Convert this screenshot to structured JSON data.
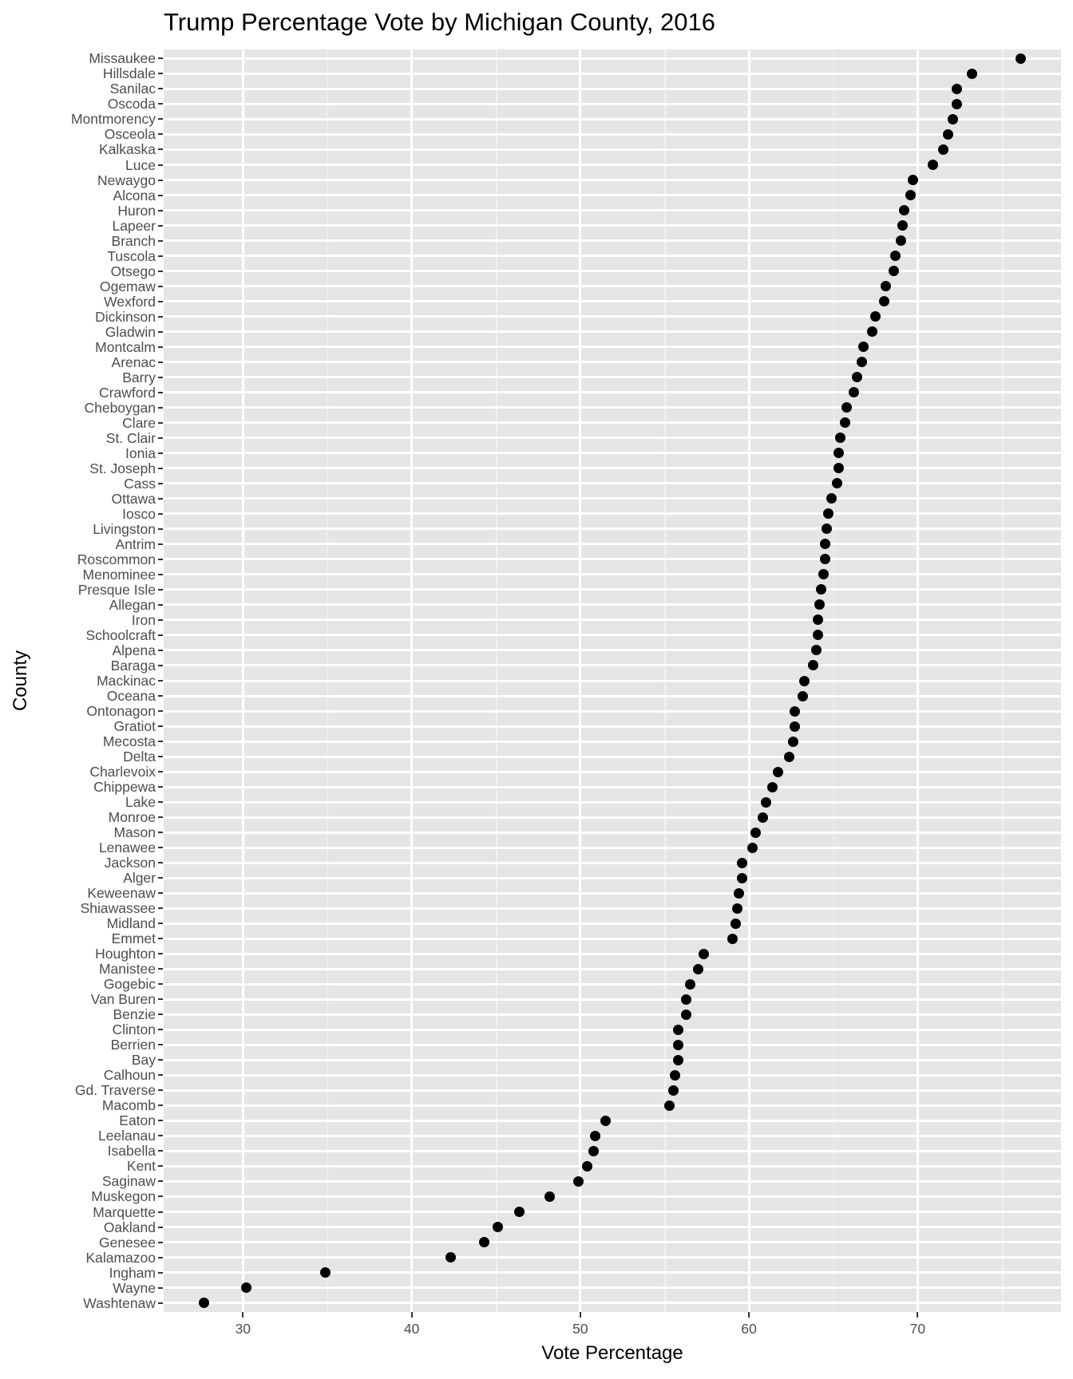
{
  "chart_data": {
    "type": "scatter",
    "title": "Trump Percentage Vote by Michigan County, 2016",
    "xlabel": "Vote Percentage",
    "ylabel": "County",
    "xlim": [
      25.3,
      78.5
    ],
    "x_ticks": [
      30,
      40,
      50,
      60,
      70
    ],
    "grid": true,
    "legend": null,
    "categories": [
      "Missaukee",
      "Hillsdale",
      "Sanilac",
      "Oscoda",
      "Montmorency",
      "Osceola",
      "Kalkaska",
      "Luce",
      "Newaygo",
      "Alcona",
      "Huron",
      "Lapeer",
      "Branch",
      "Tuscola",
      "Otsego",
      "Ogemaw",
      "Wexford",
      "Dickinson",
      "Gladwin",
      "Montcalm",
      "Arenac",
      "Barry",
      "Crawford",
      "Cheboygan",
      "Clare",
      "St. Clair",
      "Ionia",
      "St. Joseph",
      "Cass",
      "Ottawa",
      "Iosco",
      "Livingston",
      "Antrim",
      "Roscommon",
      "Menominee",
      "Presque Isle",
      "Allegan",
      "Iron",
      "Schoolcraft",
      "Alpena",
      "Baraga",
      "Mackinac",
      "Oceana",
      "Ontonagon",
      "Gratiot",
      "Mecosta",
      "Delta",
      "Charlevoix",
      "Chippewa",
      "Lake",
      "Monroe",
      "Mason",
      "Lenawee",
      "Jackson",
      "Alger",
      "Keweenaw",
      "Shiawassee",
      "Midland",
      "Emmet",
      "Houghton",
      "Manistee",
      "Gogebic",
      "Van Buren",
      "Benzie",
      "Clinton",
      "Berrien",
      "Bay",
      "Calhoun",
      "Gd. Traverse",
      "Macomb",
      "Eaton",
      "Leelanau",
      "Isabella",
      "Kent",
      "Saginaw",
      "Muskegon",
      "Marquette",
      "Oakland",
      "Genesee",
      "Kalamazoo",
      "Ingham",
      "Wayne",
      "Washtenaw"
    ],
    "values": [
      76.1,
      73.2,
      72.3,
      72.3,
      72.1,
      71.8,
      71.5,
      70.9,
      69.7,
      69.6,
      69.2,
      69.1,
      69.0,
      68.7,
      68.6,
      68.1,
      68.0,
      67.5,
      67.3,
      66.8,
      66.7,
      66.4,
      66.2,
      65.8,
      65.7,
      65.4,
      65.3,
      65.3,
      65.2,
      64.9,
      64.7,
      64.6,
      64.5,
      64.5,
      64.4,
      64.3,
      64.2,
      64.1,
      64.1,
      64.0,
      63.8,
      63.3,
      63.2,
      62.7,
      62.7,
      62.6,
      62.4,
      61.7,
      61.4,
      61.0,
      60.8,
      60.4,
      60.2,
      59.6,
      59.6,
      59.4,
      59.3,
      59.2,
      59.0,
      57.3,
      57.0,
      56.5,
      56.3,
      56.3,
      55.8,
      55.8,
      55.8,
      55.6,
      55.5,
      55.3,
      51.5,
      50.9,
      50.8,
      50.4,
      49.9,
      48.2,
      46.4,
      45.1,
      44.3,
      42.3,
      34.9,
      30.2,
      27.7
    ]
  },
  "colors": {
    "panel_bg": "#e5e5e5",
    "grid": "#ffffff",
    "point": "#000000",
    "tick_label": "#4d4d4d"
  }
}
